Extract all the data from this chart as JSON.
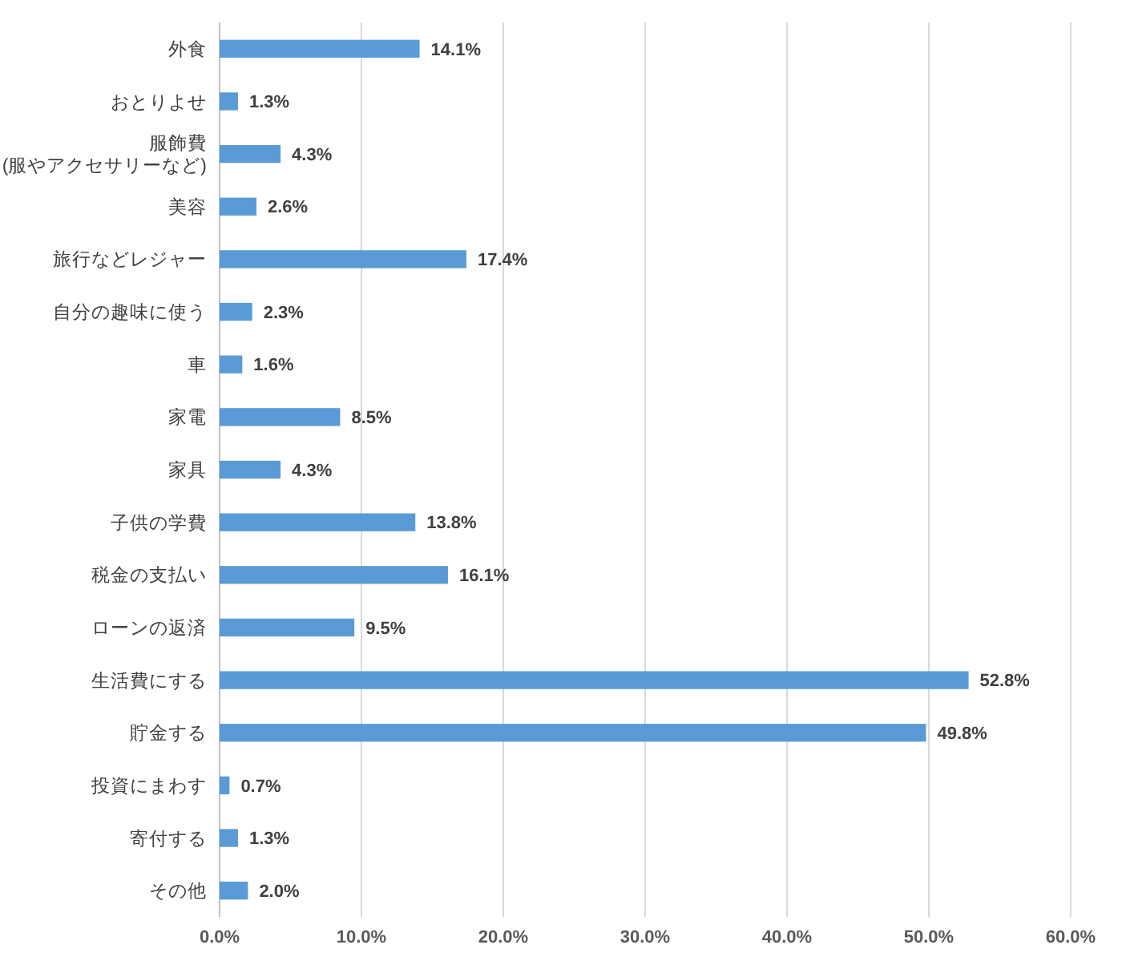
{
  "chart_data": {
    "type": "bar",
    "orientation": "horizontal",
    "categories": [
      "外食",
      "おとりよせ",
      "服飾費\n(服やアクセサリーなど)",
      "美容",
      "旅行などレジャー",
      "自分の趣味に使う",
      "車",
      "家電",
      "家具",
      "子供の学費",
      "税金の支払い",
      "ローンの返済",
      "生活費にする",
      "貯金する",
      "投資にまわす",
      "寄付する",
      "その他"
    ],
    "values": [
      14.1,
      1.3,
      4.3,
      2.6,
      17.4,
      2.3,
      1.6,
      8.5,
      4.3,
      13.8,
      16.1,
      9.5,
      52.8,
      49.8,
      0.7,
      1.3,
      2.0
    ],
    "value_labels": [
      "14.1%",
      "1.3%",
      "4.3%",
      "2.6%",
      "17.4%",
      "2.3%",
      "1.6%",
      "8.5%",
      "4.3%",
      "13.8%",
      "16.1%",
      "9.5%",
      "52.8%",
      "49.8%",
      "0.7%",
      "1.3%",
      "2.0%"
    ],
    "color": "#5b9bd5",
    "xlim": [
      0,
      60
    ],
    "xticks": [
      {
        "value": 0,
        "label": "0.0%"
      },
      {
        "value": 10,
        "label": "10.0%"
      },
      {
        "value": 20,
        "label": "20.0%"
      },
      {
        "value": 30,
        "label": "30.0%"
      },
      {
        "value": 40,
        "label": "40.0%"
      },
      {
        "value": 50,
        "label": "50.0%"
      },
      {
        "value": 60,
        "label": "60.0%"
      }
    ],
    "grid": "x"
  }
}
